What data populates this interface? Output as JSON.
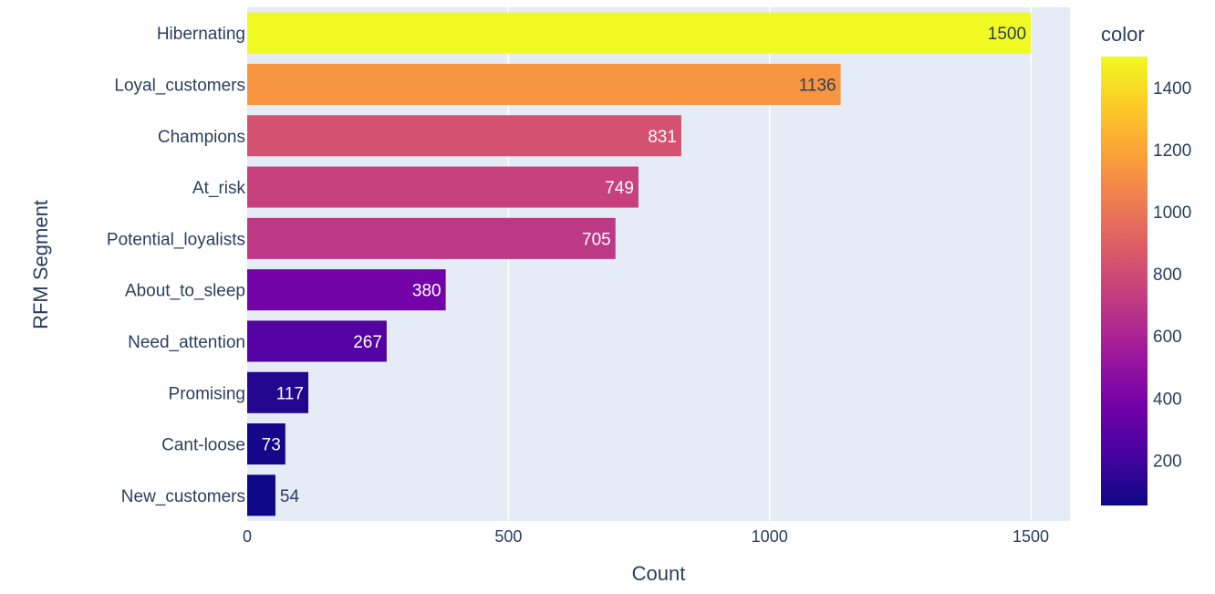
{
  "chart_data": {
    "type": "bar",
    "orientation": "horizontal",
    "categories": [
      "Hibernating",
      "Loyal_customers",
      "Champions",
      "At_risk",
      "Potential_loyalists",
      "About_to_sleep",
      "Need_attention",
      "Promising",
      "Cant-loose",
      "New_customers"
    ],
    "values": [
      1500,
      1136,
      831,
      749,
      705,
      380,
      267,
      117,
      73,
      54
    ],
    "data_labels": [
      "1500",
      "1136",
      "831",
      "749",
      "705",
      "380",
      "267",
      "117",
      "73",
      "54"
    ],
    "xlabel": "Count",
    "ylabel": "RFM Segment",
    "xlim": [
      0,
      1575
    ],
    "x_ticks": [
      0,
      500,
      1000,
      1500
    ],
    "x_tick_labels": [
      "0",
      "500",
      "1000",
      "1500"
    ],
    "grid": true,
    "colorbar": {
      "title": "color",
      "range": [
        54,
        1500
      ],
      "ticks": [
        200,
        400,
        600,
        800,
        1000,
        1200,
        1400
      ],
      "tick_labels": [
        "200",
        "400",
        "600",
        "800",
        "1000",
        "1200",
        "1400"
      ],
      "colorscale": [
        "#0d0887",
        "#46039f",
        "#7201a8",
        "#9c179e",
        "#bd3786",
        "#d8576b",
        "#ed7953",
        "#fb9f3a",
        "#fdca26",
        "#f0f921"
      ]
    },
    "plot_background": "#e5ecf6"
  }
}
